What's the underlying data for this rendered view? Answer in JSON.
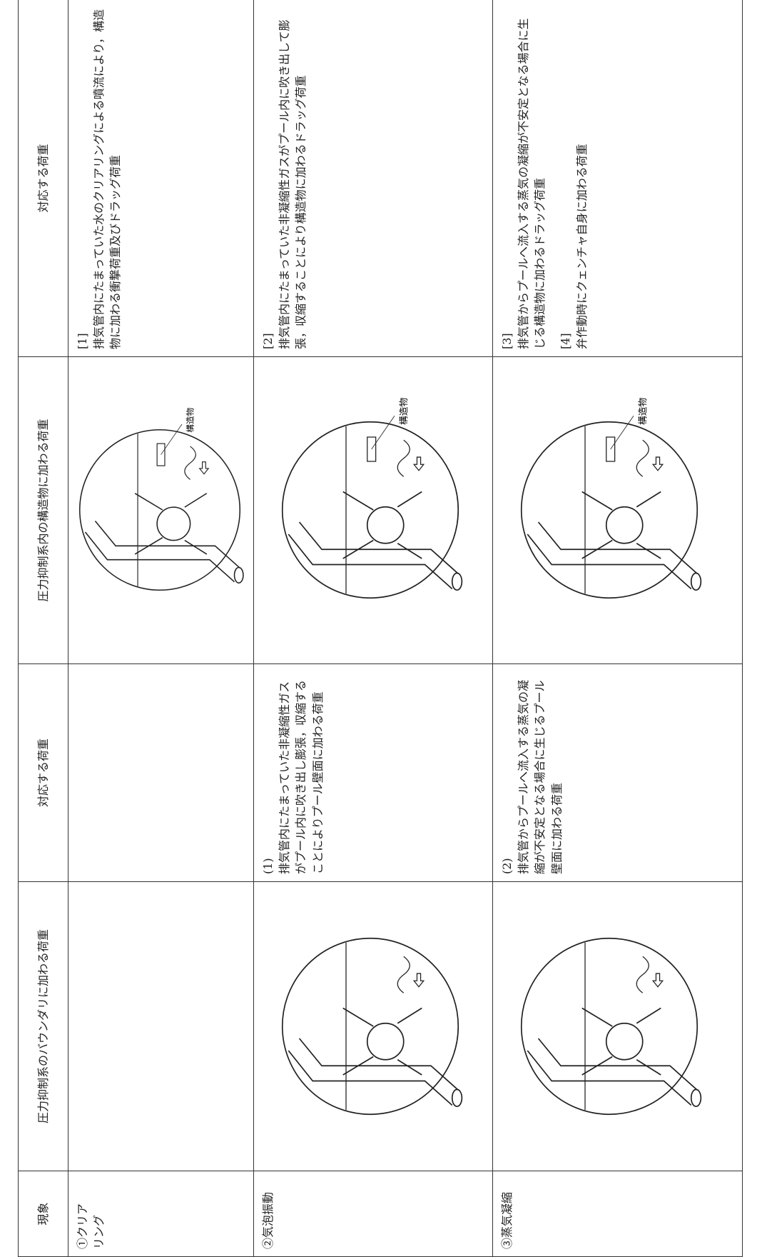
{
  "table": {
    "headers": [
      "現象",
      "圧力抑制系のバウンダリに加わる荷重",
      "対応する荷重",
      "圧力抑制系内の構造物に加わる荷重",
      "対応する荷重"
    ],
    "rows": [
      {
        "phenomenon": "①クリア\nリング",
        "structure_label": "構造物",
        "structure_loads": [
          {
            "label": "[1]",
            "text": "排気管内にたまっていた水のクリアリングによる噴流により，構造物に加わる衝撃荷重及びドラッグ荷重"
          }
        ]
      },
      {
        "phenomenon": "②気泡振動",
        "boundary_loads": [
          {
            "label": "(1)",
            "text": "排気管内にたまっていた非凝縮性ガスがプール内に吹き出し膨張，収縮することによりプール壁面に加わる荷重"
          }
        ],
        "structure_label": "構造物",
        "structure_loads": [
          {
            "label": "[2]",
            "text": "排気管内にたまっていた非凝縮性ガスがプール内に吹き出して膨張，収縮することにより構造物に加わるドラッグ荷重"
          }
        ]
      },
      {
        "phenomenon": "③蒸気凝縮",
        "boundary_loads": [
          {
            "label": "(2)",
            "text": "排気管からプールへ流入する蒸気の凝縮が不安定となる場合に生じるプール壁面に加わる荷重"
          }
        ],
        "structure_label": "構造物",
        "structure_loads": [
          {
            "label": "[3]",
            "text": "排気管からプールへ流入する蒸気の凝縮が不安定となる場合に生じる構造物に加わるドラッグ荷重"
          },
          {
            "label": "[4]",
            "text": "弁作動時にクェンチャ自身に加わる荷重"
          }
        ]
      }
    ]
  }
}
